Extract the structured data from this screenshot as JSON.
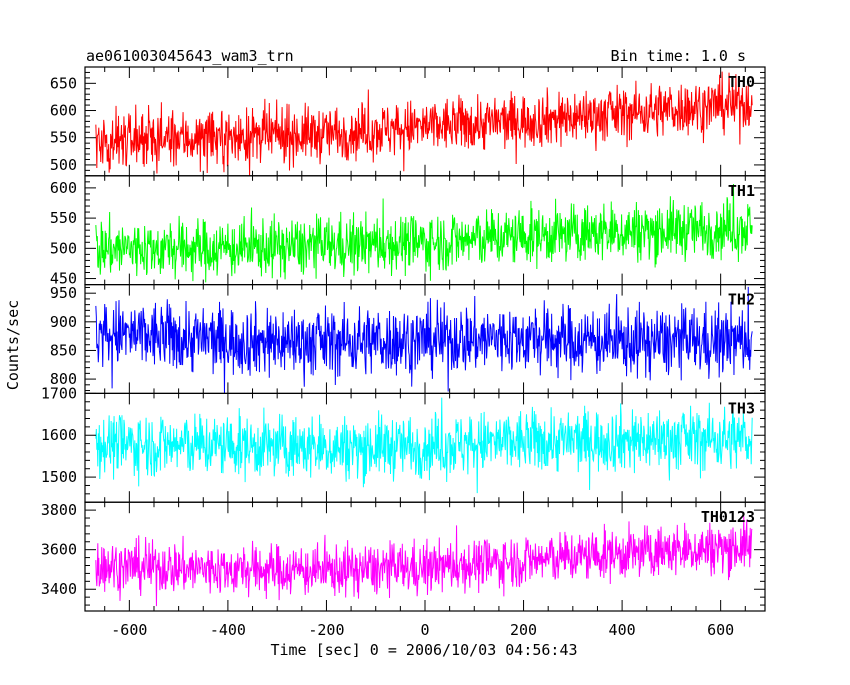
{
  "header": {
    "title": "ae061003045643_wam3_trn",
    "bin_time": "Bin time: 1.0 s"
  },
  "axes": {
    "xlabel": "Time [sec] 0 = 2006/10/03 04:56:43",
    "ylabel": "Counts/sec"
  },
  "chart_data": {
    "type": "line",
    "title": "ae061003045643_wam3_trn",
    "subtitle": "Bin time: 1.0 s",
    "xlabel": "Time [sec] 0 = 2006/10/03 04:56:43",
    "ylabel": "Counts/sec",
    "xlim": [
      -690,
      690
    ],
    "x_range": [
      -668,
      664
    ],
    "x_ticks": [
      -600,
      -400,
      -200,
      0,
      200,
      400,
      600
    ],
    "x_tick_labels": [
      "-600",
      "-400",
      "-200",
      "0",
      "200",
      "400",
      "600"
    ],
    "grid": false,
    "legend": "none",
    "panels": [
      {
        "name": "TH0",
        "color": "#ff0000",
        "ylim": [
          480,
          680
        ],
        "y_ticks": [
          500,
          550,
          600,
          650
        ],
        "y_tick_labels": [
          "500",
          "550",
          "600",
          "650"
        ],
        "trend": {
          "x": [
            -668,
            -400,
            -200,
            0,
            200,
            400,
            664
          ],
          "mean": [
            545,
            550,
            558,
            570,
            582,
            595,
            615
          ]
        },
        "noise_amplitude": 50,
        "clip": [
          480,
          680
        ]
      },
      {
        "name": "TH1",
        "color": "#00ff00",
        "ylim": [
          440,
          620
        ],
        "y_ticks": [
          450,
          500,
          550,
          600
        ],
        "y_tick_labels": [
          "450",
          "500",
          "550",
          "600"
        ],
        "trend": {
          "x": [
            -668,
            -400,
            -200,
            0,
            200,
            400,
            664
          ],
          "mean": [
            500,
            500,
            505,
            510,
            520,
            528,
            535
          ]
        },
        "noise_amplitude": 48,
        "clip": [
          440,
          620
        ]
      },
      {
        "name": "TH2",
        "color": "#0000ff",
        "ylim": [
          775,
          965
        ],
        "y_ticks": [
          800,
          850,
          900,
          950
        ],
        "y_tick_labels": [
          "800",
          "850",
          "900",
          "950"
        ],
        "trend": {
          "x": [
            -668,
            -400,
            -200,
            0,
            200,
            400,
            664
          ],
          "mean": [
            880,
            868,
            865,
            868,
            872,
            865,
            868
          ]
        },
        "noise_amplitude": 60,
        "clip": [
          775,
          965
        ]
      },
      {
        "name": "TH3",
        "color": "#00ffff",
        "ylim": [
          1440,
          1700
        ],
        "y_ticks": [
          1500,
          1600,
          1700
        ],
        "y_tick_labels": [
          "1500",
          "1600",
          "1700"
        ],
        "trend": {
          "x": [
            -668,
            -400,
            -200,
            0,
            200,
            400,
            664
          ],
          "mean": [
            1580,
            1575,
            1570,
            1575,
            1585,
            1590,
            1592
          ]
        },
        "noise_amplitude": 75,
        "clip": [
          1440,
          1700
        ]
      },
      {
        "name": "TH0123",
        "color": "#ff00ff",
        "ylim": [
          3290,
          3840
        ],
        "y_ticks": [
          3400,
          3600,
          3800
        ],
        "y_tick_labels": [
          "3400",
          "3600",
          "3800"
        ],
        "trend": {
          "x": [
            -668,
            -400,
            -200,
            0,
            200,
            400,
            664
          ],
          "mean": [
            3520,
            3500,
            3495,
            3510,
            3545,
            3580,
            3620
          ]
        },
        "noise_amplitude": 130,
        "clip": [
          3290,
          3840
        ]
      }
    ]
  }
}
